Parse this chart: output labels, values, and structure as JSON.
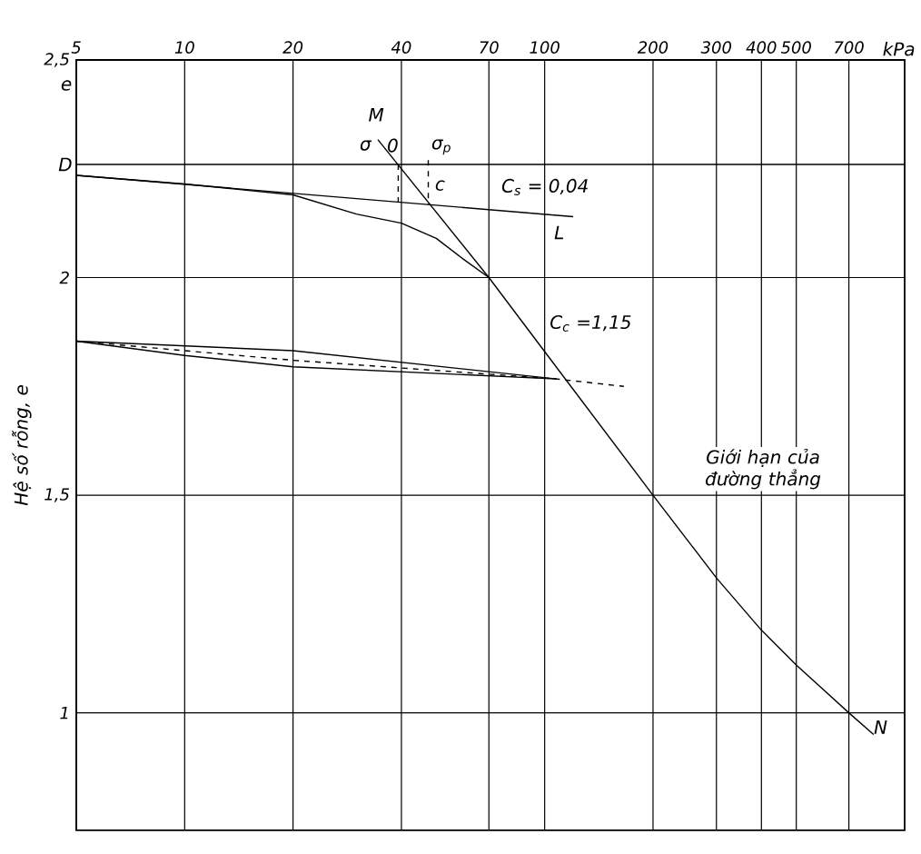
{
  "chart_data": {
    "type": "line",
    "xlabel": "kPa",
    "ylabel": "Hệ số rỗng, e",
    "log": "x",
    "grid": true,
    "marker": "none",
    "xlim": [
      5,
      1000
    ],
    "ylim": [
      0.73,
      2.5
    ],
    "xticks": [
      5,
      10,
      20,
      40,
      70,
      100,
      200,
      300,
      400,
      500,
      700
    ],
    "yticks": [
      {
        "value": 2.5,
        "label": "2,5"
      },
      2,
      {
        "value": 1.5,
        "label": "1,5"
      },
      1
    ],
    "series": [
      {
        "color": "#000000",
        "x": [
          5,
          10,
          20,
          30,
          40,
          50,
          60,
          70,
          100,
          200,
          300,
          400,
          500,
          700,
          820
        ],
        "values": [
          2.235,
          2.215,
          2.19,
          2.146,
          2.125,
          2.09,
          2.04,
          2.0,
          1.83,
          1.5,
          1.31,
          1.19,
          1.11,
          1.0,
          0.95
        ]
      },
      {
        "color": "#000000",
        "x": [
          5,
          120
        ],
        "values": [
          2.235,
          2.14
        ]
      },
      {
        "color": "#000000",
        "x": [
          34.4,
          70
        ],
        "values": [
          2.317,
          2.0
        ]
      },
      {
        "color": "#000000",
        "x": [
          39.2,
          39.2
        ],
        "values": [
          2.26,
          2.173
        ],
        "line_style": "dashed"
      },
      {
        "color": "#000000",
        "x": [
          47.5,
          47.5
        ],
        "values": [
          2.27,
          2.168
        ],
        "line_style": "dashed"
      },
      {
        "color": "#000000",
        "x": [
          5,
          20,
          108
        ],
        "values": [
          1.854,
          1.832,
          1.767
        ]
      },
      {
        "color": "#000000",
        "x": [
          5,
          10,
          20,
          108
        ],
        "values": [
          1.854,
          1.821,
          1.795,
          1.767
        ]
      },
      {
        "color": "#000000",
        "x": [
          5,
          20,
          108,
          166
        ],
        "values": [
          1.854,
          1.81,
          1.767,
          1.75
        ],
        "line_style": "dashed"
      }
    ],
    "ref_lines": [
      {
        "axis": "y",
        "value": 2.26,
        "label": "D"
      }
    ],
    "annotations": [
      "e",
      "M",
      "σ",
      "0",
      "σ$_{p}$",
      "c",
      "C$_{s}$ = 0,04",
      "L",
      "C$_{c}$ =1,15",
      "Giới hạn của đường thẳng",
      "N"
    ]
  }
}
